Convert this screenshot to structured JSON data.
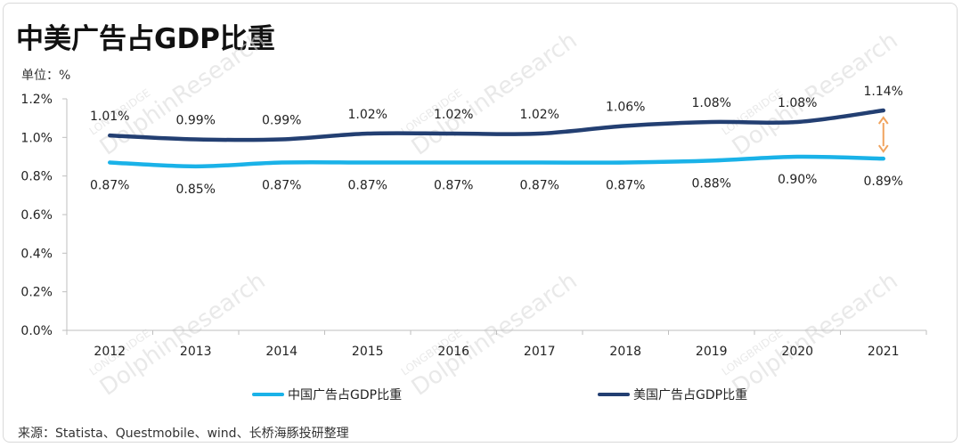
{
  "title": "中美广告占GDP比重",
  "unit_label": "单位：%",
  "source": "来源：Statista、Questmobile、wind、长桥海豚投研整理",
  "watermark": {
    "brand": "LONGBRIDGE",
    "name": "DolphinResearch"
  },
  "colors": {
    "china": "#1ab2e8",
    "us": "#233f72",
    "arrow": "#f0a35e",
    "axis": "#bfbfbf"
  },
  "chart_data": {
    "type": "line",
    "categories": [
      "2012",
      "2013",
      "2014",
      "2015",
      "2016",
      "2017",
      "2018",
      "2019",
      "2020",
      "2021"
    ],
    "ylim": [
      0,
      1.2
    ],
    "yticks": [
      0,
      0.2,
      0.4,
      0.6,
      0.8,
      1.0,
      1.2
    ],
    "ytick_labels": [
      "0.0%",
      "0.2%",
      "0.4%",
      "0.6%",
      "0.8%",
      "1.0%",
      "1.2%"
    ],
    "series": [
      {
        "name": "中国广告占GDP比重",
        "values": [
          0.87,
          0.85,
          0.87,
          0.87,
          0.87,
          0.87,
          0.87,
          0.88,
          0.9,
          0.89
        ],
        "labels": [
          "0.87%",
          "0.85%",
          "0.87%",
          "0.87%",
          "0.87%",
          "0.87%",
          "0.87%",
          "0.88%",
          "0.90%",
          "0.89%"
        ]
      },
      {
        "name": "美国广告占GDP比重",
        "values": [
          1.01,
          0.99,
          0.99,
          1.02,
          1.02,
          1.02,
          1.06,
          1.08,
          1.08,
          1.14
        ],
        "labels": [
          "1.01%",
          "0.99%",
          "0.99%",
          "1.02%",
          "1.02%",
          "1.02%",
          "1.06%",
          "1.08%",
          "1.08%",
          "1.14%"
        ]
      }
    ],
    "legend_position": "bottom",
    "grid": false,
    "annotation": "double-headed arrow at 2021 between series"
  }
}
